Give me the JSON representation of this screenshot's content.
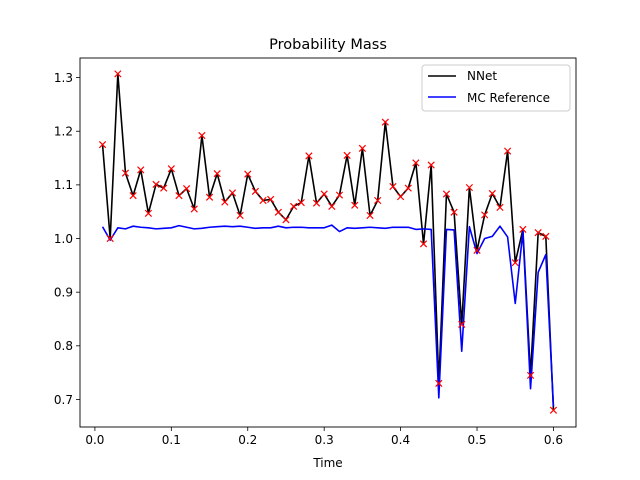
{
  "chart_data": {
    "type": "line",
    "title": "Probability Mass",
    "xlabel": "Time",
    "ylabel": "",
    "xlim": [
      -0.0195,
      0.6295
    ],
    "ylim": [
      0.6487,
      1.3365
    ],
    "x_ticks": [
      0.0,
      0.1,
      0.2,
      0.3,
      0.4,
      0.5,
      0.6
    ],
    "x_tick_labels": [
      "0.0",
      "0.1",
      "0.2",
      "0.3",
      "0.4",
      "0.5",
      "0.6"
    ],
    "y_ticks": [
      0.7,
      0.8,
      0.9,
      1.0,
      1.1,
      1.2,
      1.3
    ],
    "y_tick_labels": [
      "0.7",
      "0.8",
      "0.9",
      "1.0",
      "1.1",
      "1.2",
      "1.3"
    ],
    "grid": false,
    "legend_position": "top-right",
    "x": [
      0.01,
      0.02,
      0.03,
      0.04,
      0.05,
      0.06,
      0.07,
      0.08,
      0.09,
      0.1,
      0.11,
      0.12,
      0.13,
      0.14,
      0.15,
      0.16,
      0.17,
      0.18,
      0.19,
      0.2,
      0.21,
      0.22,
      0.23,
      0.24,
      0.25,
      0.26,
      0.27,
      0.28,
      0.29,
      0.3,
      0.31,
      0.32,
      0.33,
      0.34,
      0.35,
      0.36,
      0.37,
      0.38,
      0.39,
      0.4,
      0.41,
      0.42,
      0.43,
      0.44,
      0.45,
      0.46,
      0.47,
      0.48,
      0.49,
      0.5,
      0.51,
      0.52,
      0.53,
      0.54,
      0.55,
      0.56,
      0.57,
      0.58,
      0.59,
      0.6
    ],
    "series": [
      {
        "name": "NNet",
        "color": "#000000",
        "values": [
          1.175,
          1.0,
          1.307,
          1.122,
          1.08,
          1.128,
          1.047,
          1.101,
          1.094,
          1.13,
          1.08,
          1.093,
          1.055,
          1.192,
          1.077,
          1.121,
          1.068,
          1.085,
          1.043,
          1.12,
          1.088,
          1.071,
          1.073,
          1.049,
          1.035,
          1.06,
          1.067,
          1.154,
          1.066,
          1.083,
          1.06,
          1.081,
          1.155,
          1.062,
          1.168,
          1.043,
          1.071,
          1.217,
          1.097,
          1.078,
          1.094,
          1.141,
          0.99,
          1.137,
          0.73,
          1.083,
          1.049,
          0.84,
          1.095,
          0.978,
          1.044,
          1.084,
          1.058,
          1.163,
          0.955,
          1.017,
          0.745,
          1.011,
          1.004,
          0.68
        ]
      },
      {
        "name": "MC Reference",
        "color": "#0000ff",
        "values": [
          1.022,
          0.997,
          1.02,
          1.018,
          1.023,
          1.021,
          1.02,
          1.018,
          1.019,
          1.02,
          1.024,
          1.021,
          1.018,
          1.019,
          1.021,
          1.022,
          1.023,
          1.022,
          1.023,
          1.021,
          1.019,
          1.02,
          1.02,
          1.023,
          1.02,
          1.021,
          1.021,
          1.02,
          1.02,
          1.02,
          1.025,
          1.013,
          1.02,
          1.019,
          1.02,
          1.021,
          1.02,
          1.019,
          1.021,
          1.021,
          1.021,
          1.017,
          1.018,
          1.017,
          0.703,
          1.017,
          1.016,
          0.79,
          1.022,
          0.972,
          1.0,
          1.004,
          1.023,
          1.003,
          0.879,
          1.013,
          0.72,
          0.937,
          0.97,
          0.687
        ]
      }
    ],
    "markers": {
      "series": "NNet",
      "symbol": "x",
      "color": "#ff0000"
    }
  }
}
